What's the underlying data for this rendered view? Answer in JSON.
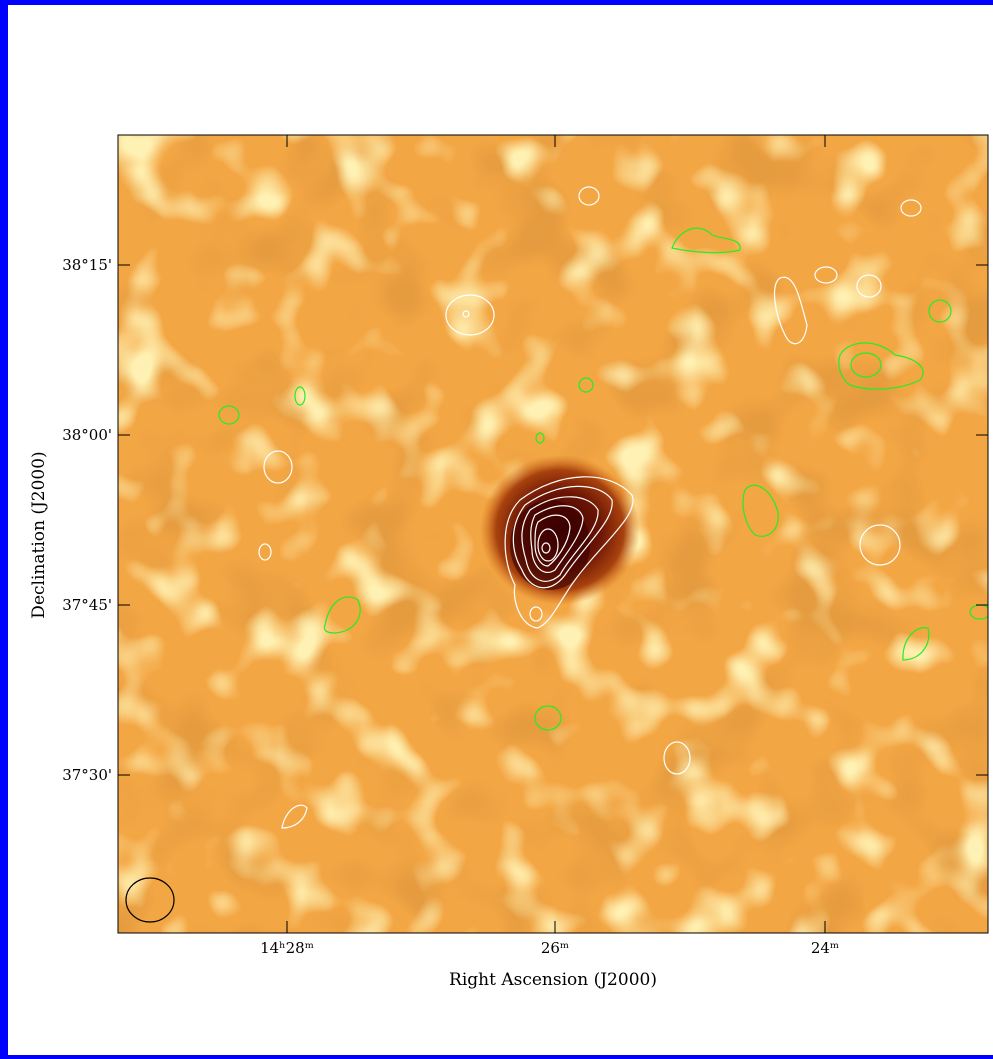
{
  "plot": {
    "x_axis": {
      "title": "Right Ascension (J2000)",
      "tick_labels": [
        "14ʰ28ᵐ",
        "26ᵐ",
        "24ᵐ"
      ]
    },
    "y_axis": {
      "title": "Declination (J2000)",
      "tick_labels": [
        "38°15'",
        "38°00'",
        "37°45'",
        "37°30'"
      ]
    }
  }
}
